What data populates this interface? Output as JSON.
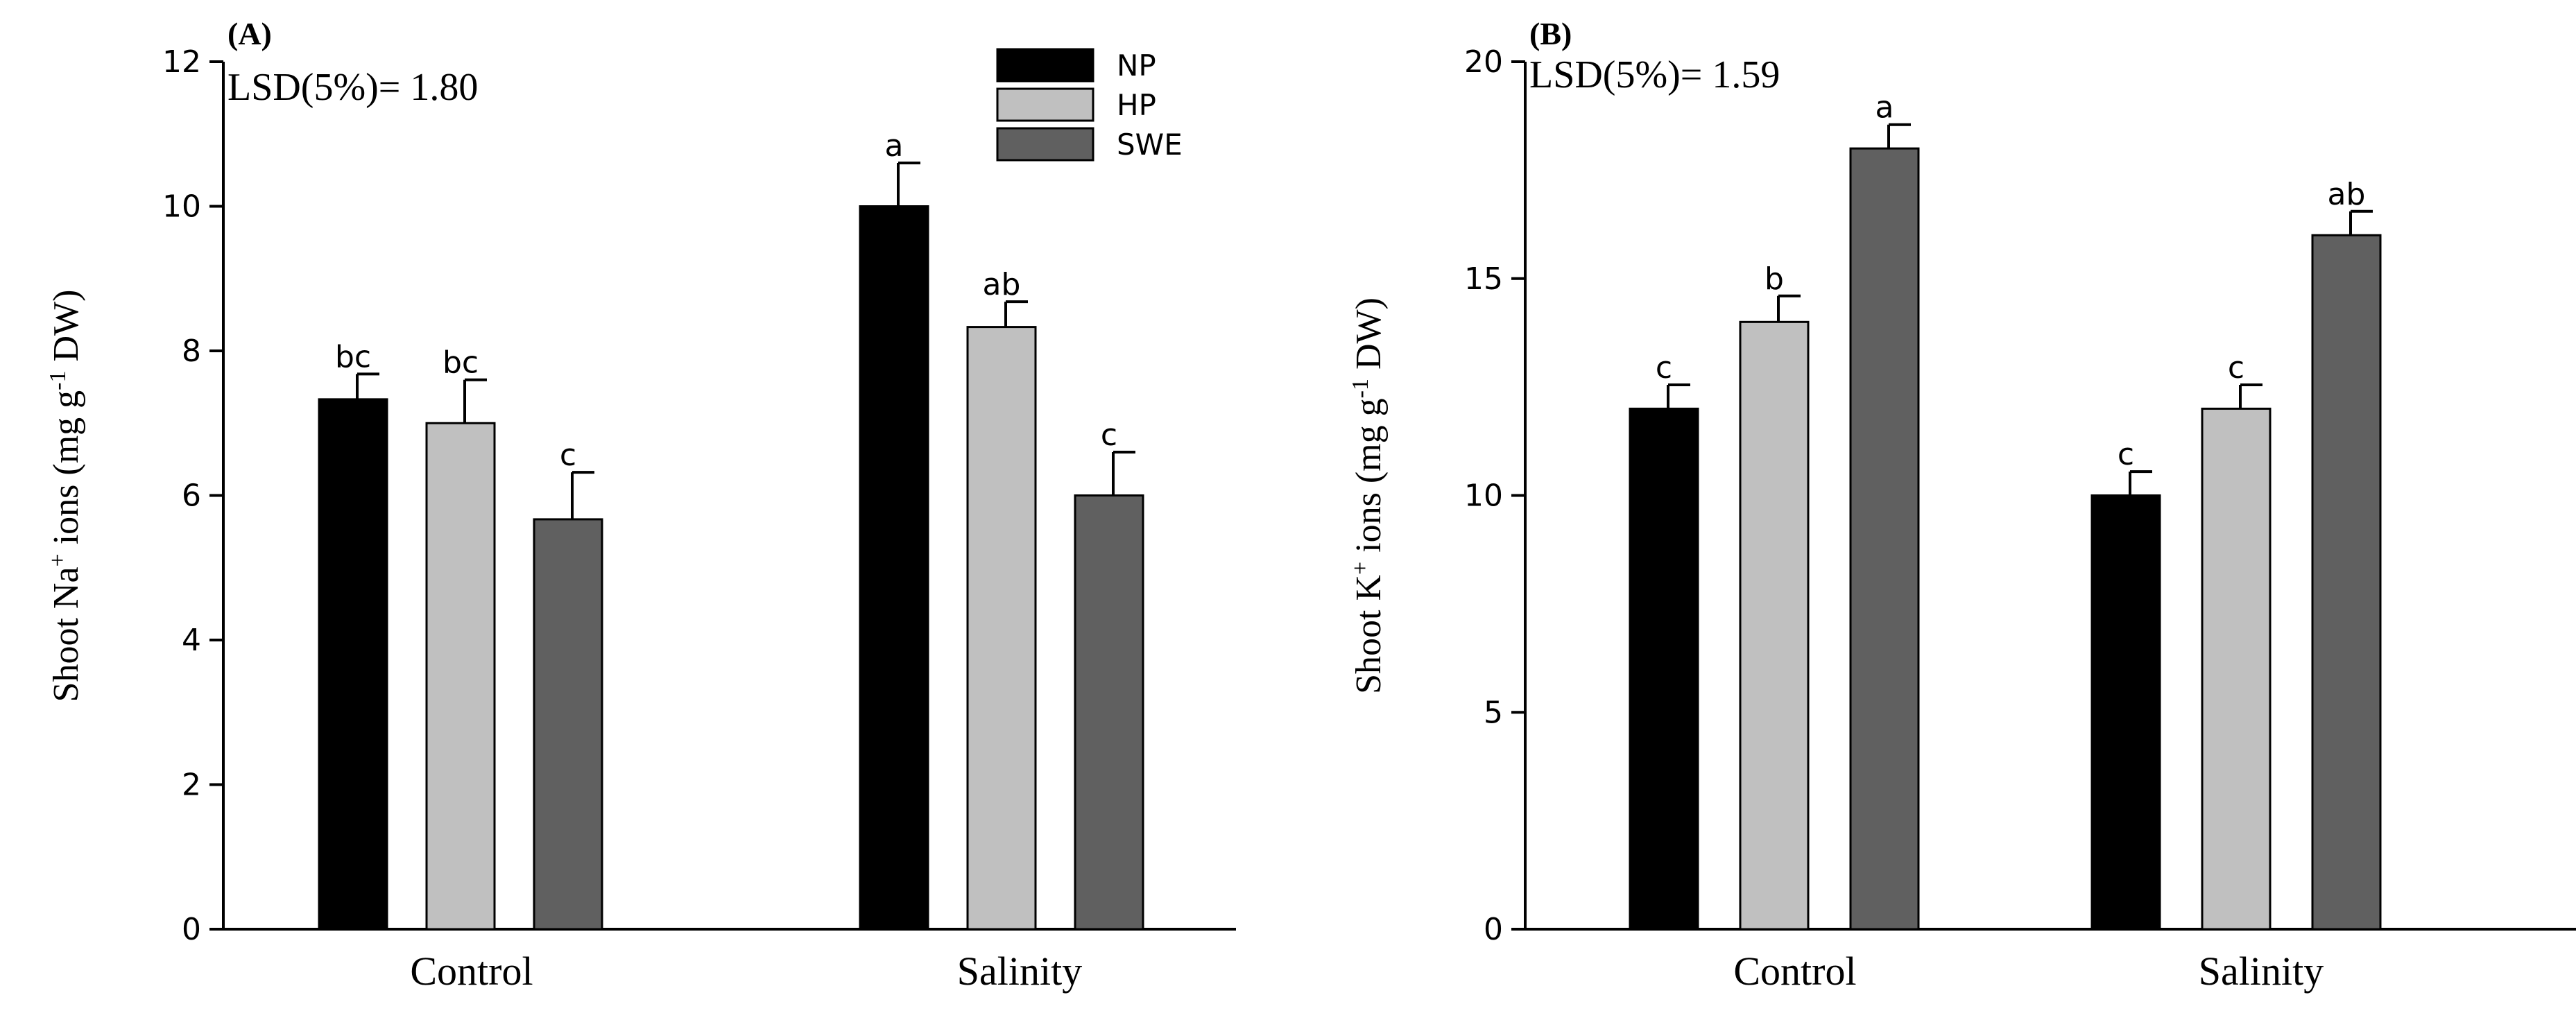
{
  "chart_data": [
    {
      "type": "bar",
      "panel_label": "(A)",
      "annotation": "LSD(5%)= 1.80",
      "title": "",
      "xlabel": "",
      "ylabel": "Shoot Na",
      "ylabel_sup": "+",
      "ylabel_rest": " ions (mg g",
      "ylabel_sup2": "-1",
      "ylabel_tail": " DW)",
      "categories": [
        "Control",
        "Salinity"
      ],
      "ylim": [
        0,
        12
      ],
      "yticks": [
        0,
        2,
        4,
        6,
        8,
        10,
        12
      ],
      "series": [
        {
          "name": "NP",
          "values": [
            7.33,
            10.0
          ],
          "errors": [
            0.35,
            0.6
          ],
          "letters": [
            "bc",
            "a"
          ]
        },
        {
          "name": "HP",
          "values": [
            7.0,
            8.33
          ],
          "errors": [
            0.6,
            0.35
          ],
          "letters": [
            "bc",
            "ab"
          ]
        },
        {
          "name": "SWE",
          "values": [
            5.67,
            6.0
          ],
          "errors": [
            0.65,
            0.6
          ],
          "letters": [
            "c",
            "c"
          ]
        }
      ],
      "legend": {
        "position": "top-right"
      }
    },
    {
      "type": "bar",
      "panel_label": "(B)",
      "annotation": "LSD(5%)= 1.59",
      "title": "",
      "xlabel": "",
      "ylabel": "Shoot K",
      "ylabel_sup": "+",
      "ylabel_rest": " ions (mg g",
      "ylabel_sup2": "-1",
      "ylabel_tail": " DW)",
      "categories": [
        "Control",
        "Salinity"
      ],
      "ylim": [
        0,
        20
      ],
      "yticks": [
        0,
        5,
        10,
        15,
        20
      ],
      "series": [
        {
          "name": "NP",
          "values": [
            12.0,
            10.0
          ],
          "errors": [
            0.55,
            0.55
          ],
          "letters": [
            "c",
            "c"
          ]
        },
        {
          "name": "HP",
          "values": [
            14.0,
            12.0
          ],
          "errors": [
            0.6,
            0.55
          ],
          "letters": [
            "b",
            "c"
          ]
        },
        {
          "name": "SWE",
          "values": [
            18.0,
            16.0
          ],
          "errors": [
            0.55,
            0.55
          ],
          "letters": [
            "a",
            "ab"
          ]
        }
      ]
    }
  ],
  "colors": {
    "NP": "#000000",
    "HP": "#c0c0c0",
    "SWE": "#606060"
  }
}
